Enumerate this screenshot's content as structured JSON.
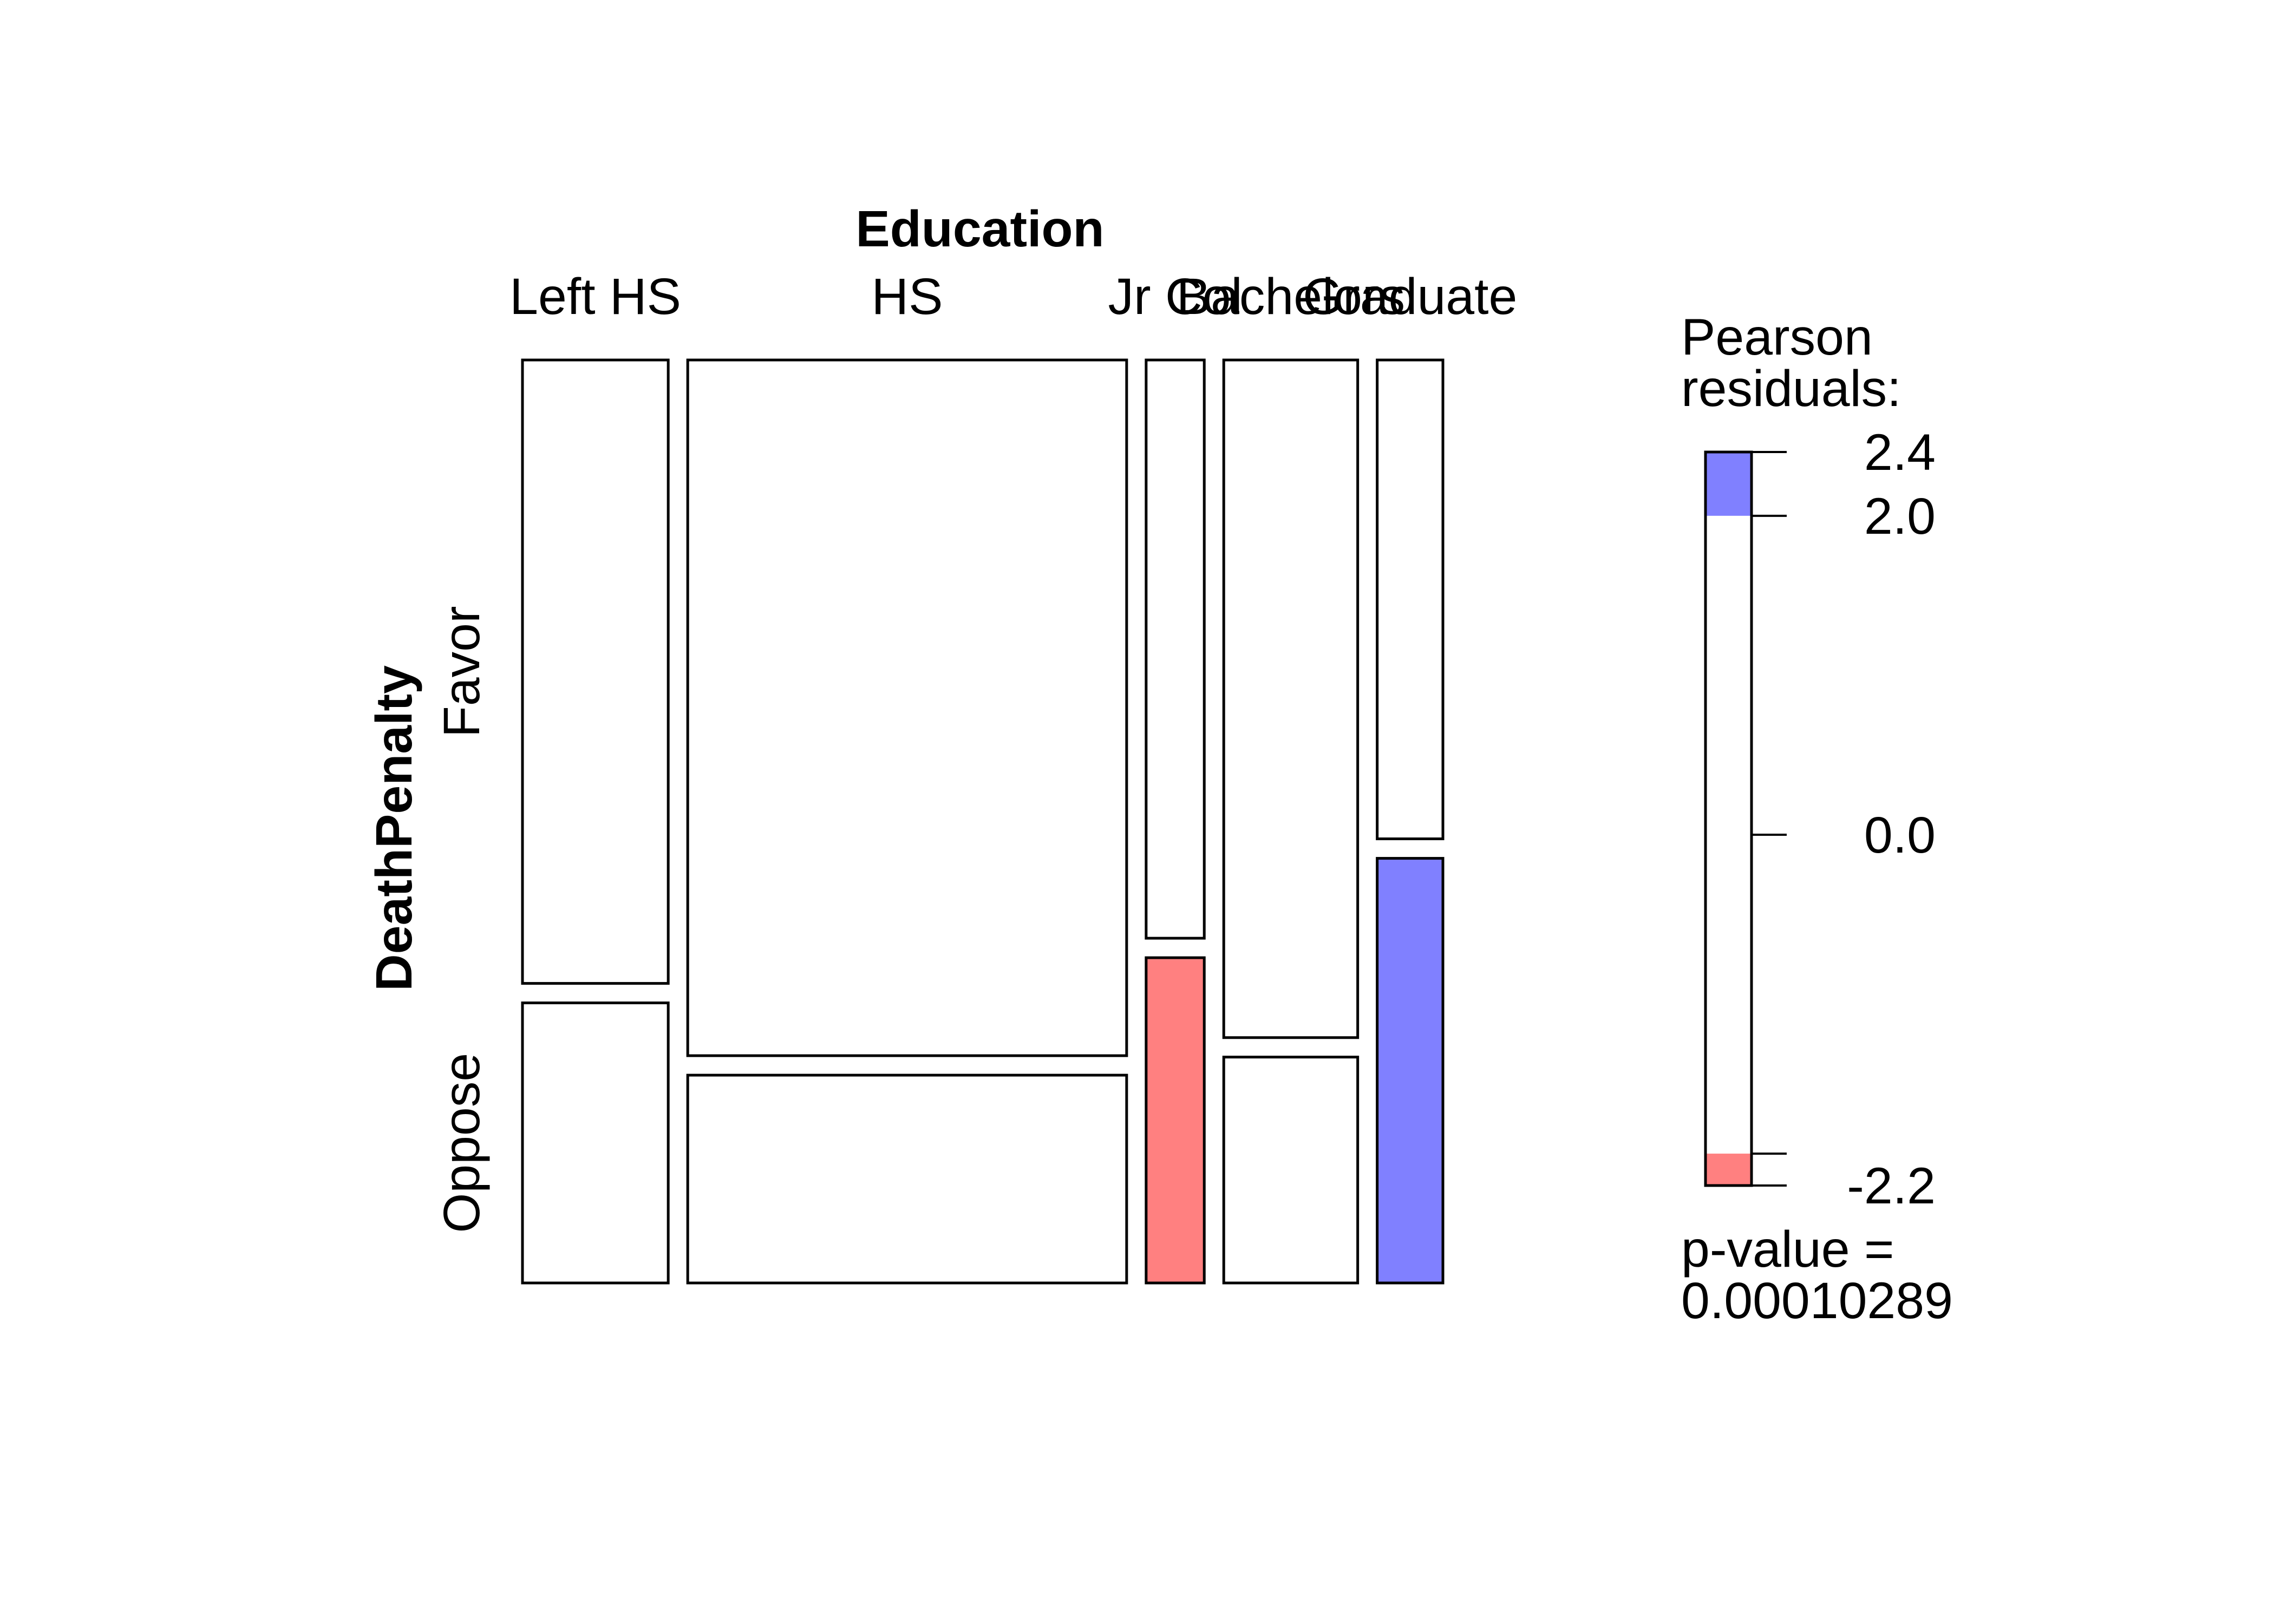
{
  "chart_data": {
    "type": "mosaic",
    "xvar": "Education",
    "yvar": "DeathPenalty",
    "categories": [
      "Left HS",
      "HS",
      "Jr Col",
      "Bachelors",
      "Graduate"
    ],
    "rows": [
      "Favor",
      "Oppose"
    ],
    "column_proportions": [
      0.173,
      0.521,
      0.069,
      0.159,
      0.078
    ],
    "favor_share": [
      0.69,
      0.77,
      0.64,
      0.75,
      0.53
    ],
    "residual_colors": [
      [
        "#ffffff",
        "#ffffff",
        "#ffffff",
        "#ffffff",
        "#ffffff"
      ],
      [
        "#ffffff",
        "#ffffff",
        "#ff8080",
        "#ffffff",
        "#8080ff"
      ]
    ],
    "legend": {
      "title_line1": "Pearson",
      "title_line2": "residuals:",
      "max": 2.4,
      "min": -2.2,
      "tick_labels": [
        "2.4",
        "2.0",
        "0.0",
        "-2.2"
      ],
      "tick_values": [
        2.4,
        2.0,
        0.0,
        -2.2
      ],
      "positive_threshold": 2.0,
      "negative_threshold": -2.0,
      "positive_color": "#8080ff",
      "negative_color": "#ff8080",
      "pvalue_line1": "p-value =",
      "pvalue_line2": "0.00010289"
    }
  }
}
